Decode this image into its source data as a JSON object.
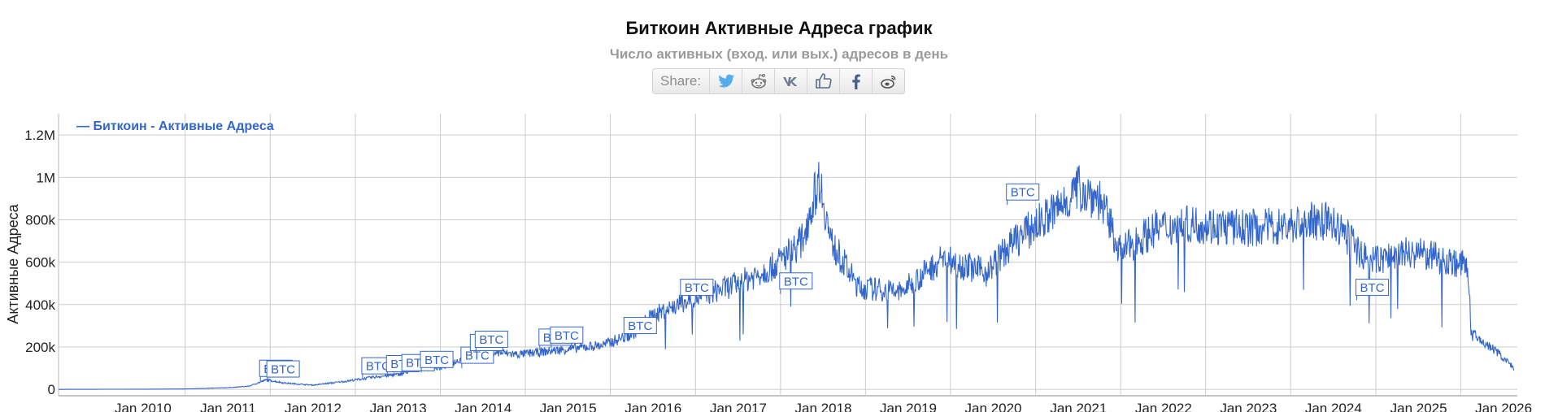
{
  "share": {
    "label": "Share:"
  },
  "icons": [
    "twitter-icon",
    "reddit-icon",
    "vk-icon",
    "like-icon",
    "facebook-icon",
    "weibo-icon"
  ],
  "colors": {
    "line": "#3366cc",
    "grid": "#cccccc",
    "flag": "#3366cc"
  },
  "chart_data": {
    "type": "line",
    "title": "Биткоин Активные Адреса график",
    "subtitle": "Число активных (вход. или вых.) адресов в день",
    "ylabel": "Активные Адреса",
    "xlabel": "",
    "legend": {
      "label": "— Биткоин - Активные Адреса",
      "position": "top-left"
    },
    "x_ticks": [
      "Jan 2010",
      "Jan 2011",
      "Jan 2012",
      "Jan 2013",
      "Jan 2014",
      "Jan 2015",
      "Jan 2016",
      "Jan 2017",
      "Jan 2018",
      "Jan 2019",
      "Jan 2020",
      "Jan 2021",
      "Jan 2022",
      "Jan 2023",
      "Jan 2024",
      "Jan 2025",
      "Jan 2026"
    ],
    "y_ticks": [
      {
        "label": "0",
        "value": 0
      },
      {
        "label": "200k",
        "value": 200000
      },
      {
        "label": "400k",
        "value": 400000
      },
      {
        "label": "600k",
        "value": 600000
      },
      {
        "label": "800k",
        "value": 800000
      },
      {
        "label": "1M",
        "value": 1000000
      },
      {
        "label": "1.2M",
        "value": 1200000
      }
    ],
    "xlim": [
      "2009-01-03",
      "2026-03-01"
    ],
    "ylim": [
      -30000,
      1300000
    ],
    "grid": true,
    "series": [
      {
        "values": [
          [
            "2009-01-03",
            0
          ],
          [
            "2010-01-01",
            1000
          ],
          [
            "2010-07-01",
            2000
          ],
          [
            "2011-01-01",
            8000
          ],
          [
            "2011-04-01",
            15000
          ],
          [
            "2011-06-15",
            45000
          ],
          [
            "2011-09-01",
            30000
          ],
          [
            "2012-01-01",
            20000
          ],
          [
            "2012-06-01",
            40000
          ],
          [
            "2012-10-01",
            60000
          ],
          [
            "2013-01-01",
            70000
          ],
          [
            "2013-04-01",
            100000
          ],
          [
            "2013-07-01",
            100000
          ],
          [
            "2013-11-01",
            160000
          ],
          [
            "2014-01-01",
            180000
          ],
          [
            "2014-06-01",
            165000
          ],
          [
            "2015-01-01",
            190000
          ],
          [
            "2015-06-01",
            210000
          ],
          [
            "2015-10-01",
            260000
          ],
          [
            "2016-01-01",
            350000
          ],
          [
            "2016-06-01",
            420000
          ],
          [
            "2017-01-01",
            500000
          ],
          [
            "2017-06-01",
            580000
          ],
          [
            "2017-10-01",
            700000
          ],
          [
            "2017-12-15",
            1000000
          ],
          [
            "2018-02-01",
            700000
          ],
          [
            "2018-06-01",
            480000
          ],
          [
            "2018-12-01",
            460000
          ],
          [
            "2019-06-01",
            620000
          ],
          [
            "2019-12-01",
            550000
          ],
          [
            "2020-04-01",
            700000
          ],
          [
            "2020-10-01",
            850000
          ],
          [
            "2021-01-01",
            950000
          ],
          [
            "2021-04-01",
            900000
          ],
          [
            "2021-07-01",
            650000
          ],
          [
            "2021-12-01",
            760000
          ],
          [
            "2022-06-01",
            780000
          ],
          [
            "2022-12-01",
            760000
          ],
          [
            "2023-06-01",
            770000
          ],
          [
            "2023-12-01",
            800000
          ],
          [
            "2024-03-01",
            720000
          ],
          [
            "2024-06-01",
            600000
          ],
          [
            "2024-12-01",
            650000
          ],
          [
            "2025-06-01",
            600000
          ],
          [
            "2025-08-01",
            580000
          ],
          [
            "2025-08-15",
            260000
          ],
          [
            "2025-12-01",
            180000
          ],
          [
            "2026-02-15",
            100000
          ]
        ]
      }
    ],
    "flags": [
      {
        "label": "BTC",
        "date": "2011-05-20",
        "value": 38000
      },
      {
        "label": "BTC",
        "date": "2011-06-20",
        "value": 35000
      },
      {
        "label": "BTC",
        "date": "2012-08-01",
        "value": 50000
      },
      {
        "label": "BTC",
        "date": "2012-11-15",
        "value": 60000
      },
      {
        "label": "BTC",
        "date": "2013-01-20",
        "value": 65000
      },
      {
        "label": "BTC",
        "date": "2013-04-10",
        "value": 80000
      },
      {
        "label": "BTC",
        "date": "2013-10-01",
        "value": 100000
      },
      {
        "label": "BTC",
        "date": "2013-11-10",
        "value": 160000
      },
      {
        "label": "BTC",
        "date": "2013-12-01",
        "value": 175000
      },
      {
        "label": "BTC",
        "date": "2014-09-01",
        "value": 185000
      },
      {
        "label": "BTC",
        "date": "2014-10-20",
        "value": 195000
      },
      {
        "label": "BTC",
        "date": "2015-09-01",
        "value": 240000
      },
      {
        "label": "BTC",
        "date": "2016-05-01",
        "value": 420000
      },
      {
        "label": "BTC",
        "date": "2017-07-01",
        "value": 450000
      },
      {
        "label": "BTC",
        "date": "2020-03-01",
        "value": 870000
      },
      {
        "label": "BTC",
        "date": "2024-04-10",
        "value": 420000
      }
    ]
  }
}
